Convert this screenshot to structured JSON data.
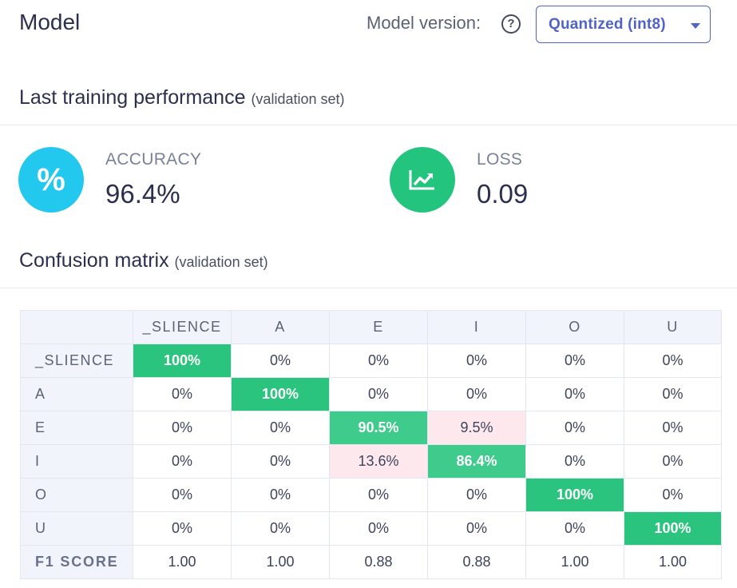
{
  "header": {
    "title": "Model",
    "version_label": "Model version:",
    "help_icon": "question-circle-icon",
    "version_select": {
      "value": "Quantized (int8)"
    }
  },
  "performance": {
    "title": "Last training performance",
    "subtitle": "(validation set)",
    "accuracy": {
      "label": "ACCURACY",
      "value": "96.4%",
      "icon": "percent-icon",
      "icon_color": "#23c8ef"
    },
    "loss": {
      "label": "LOSS",
      "value": "0.09",
      "icon": "trend-chart-icon",
      "icon_color": "#23c47e"
    }
  },
  "confusion": {
    "title": "Confusion matrix",
    "subtitle": "(validation set)",
    "columns": [
      "_SLIENCE",
      "A",
      "E",
      "I",
      "O",
      "U"
    ],
    "rows": [
      {
        "label": "_SLIENCE",
        "cells": [
          "100%",
          "0%",
          "0%",
          "0%",
          "0%",
          "0%"
        ]
      },
      {
        "label": "A",
        "cells": [
          "0%",
          "100%",
          "0%",
          "0%",
          "0%",
          "0%"
        ]
      },
      {
        "label": "E",
        "cells": [
          "0%",
          "0%",
          "90.5%",
          "9.5%",
          "0%",
          "0%"
        ]
      },
      {
        "label": "I",
        "cells": [
          "0%",
          "0%",
          "13.6%",
          "86.4%",
          "0%",
          "0%"
        ]
      },
      {
        "label": "O",
        "cells": [
          "0%",
          "0%",
          "0%",
          "0%",
          "100%",
          "0%"
        ]
      },
      {
        "label": "U",
        "cells": [
          "0%",
          "0%",
          "0%",
          "0%",
          "0%",
          "100%"
        ]
      }
    ],
    "f1": {
      "label": "F1 SCORE",
      "values": [
        "1.00",
        "1.00",
        "0.88",
        "0.88",
        "1.00",
        "1.00"
      ]
    },
    "colors": {
      "correct": "#2bc47f",
      "misclassified": "#fde8ee",
      "header_bg": "#f1f5fb"
    }
  }
}
